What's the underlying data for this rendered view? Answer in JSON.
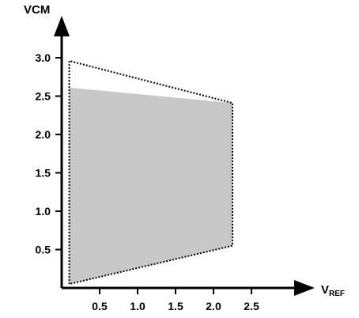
{
  "chart_data": {
    "type": "area",
    "xlabel_main": "V",
    "xlabel_sub": "REF",
    "ylabel": "VCM",
    "xlim": [
      0,
      2.75
    ],
    "ylim": [
      0,
      3.0
    ],
    "xticks": [
      0.5,
      1.0,
      1.5,
      2.0,
      2.5
    ],
    "xtick_labels": [
      "0.5",
      "1.0",
      "1.5",
      "2.0",
      "2.5"
    ],
    "yticks": [
      0.5,
      1.0,
      1.5,
      2.0,
      2.5,
      3.0
    ],
    "ytick_labels": [
      "0.5",
      "1.0",
      "1.5",
      "2.0",
      "2.5",
      "3.0"
    ],
    "grid": false,
    "series": [
      {
        "style": "dotted-outline",
        "polygon": [
          [
            0.1,
            0.05
          ],
          [
            0.1,
            2.96
          ],
          [
            2.25,
            2.41
          ],
          [
            2.25,
            0.55
          ]
        ]
      },
      {
        "style": "filled-gray",
        "polygon": [
          [
            0.1,
            0.05
          ],
          [
            0.1,
            2.61
          ],
          [
            2.25,
            2.41
          ],
          [
            2.25,
            0.55
          ]
        ]
      }
    ],
    "colors": {
      "fill": "#c8c8c8",
      "outline": "#000000",
      "axis": "#000000"
    }
  }
}
